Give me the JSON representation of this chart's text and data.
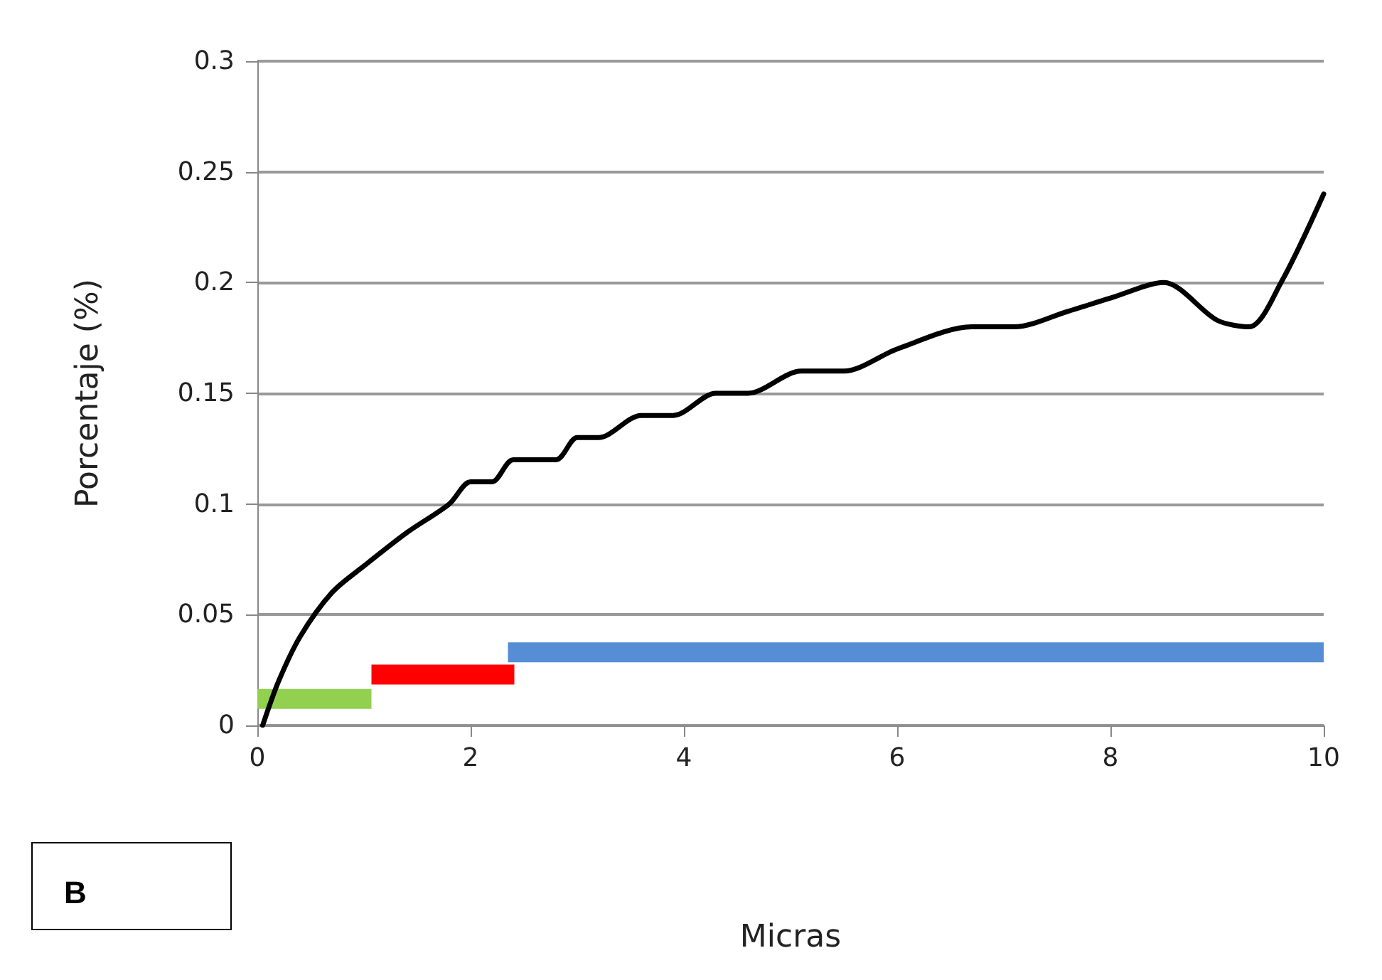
{
  "chart_data": {
    "type": "line",
    "xlabel": "Micras",
    "ylabel": "Porcentaje (%)",
    "xlim": [
      0,
      10
    ],
    "xticks": [
      0,
      2,
      4,
      6,
      8,
      10
    ],
    "ylim": [
      0,
      0.3
    ],
    "yticks": [
      0,
      0.05,
      0.1,
      0.15,
      0.2,
      0.25,
      0.3
    ],
    "grid": "y",
    "marker": "none",
    "line_style": "solid",
    "series": [
      {
        "color": "#000000",
        "x": [
          0.05,
          0.2,
          0.4,
          0.7,
          1.0,
          1.4,
          1.8,
          2.0,
          2.2,
          2.4,
          2.8,
          3.0,
          3.2,
          3.6,
          3.9,
          4.3,
          4.6,
          5.1,
          5.5,
          6.0,
          6.7,
          7.1,
          7.6,
          8.0,
          8.5,
          9.0,
          9.3,
          9.6,
          10.0
        ],
        "values": [
          0,
          0.02,
          0.04,
          0.06,
          0.072,
          0.087,
          0.1,
          0.11,
          0.11,
          0.12,
          0.12,
          0.13,
          0.13,
          0.14,
          0.14,
          0.15,
          0.15,
          0.16,
          0.16,
          0.17,
          0.18,
          0.18,
          0.187,
          0.193,
          0.2,
          0.183,
          0.18,
          0.2,
          0.24
        ]
      },
      {
        "color": "#92d050",
        "x": [
          0,
          1.07
        ],
        "values": [
          0.012,
          0.012
        ]
      },
      {
        "color": "#ff0000",
        "x": [
          1.07,
          2.41
        ],
        "values": [
          0.023,
          0.023
        ]
      },
      {
        "color": "#558ed5",
        "x": [
          2.35,
          10
        ],
        "values": [
          0.033,
          0.033
        ]
      }
    ],
    "annotations": [
      "B"
    ]
  }
}
